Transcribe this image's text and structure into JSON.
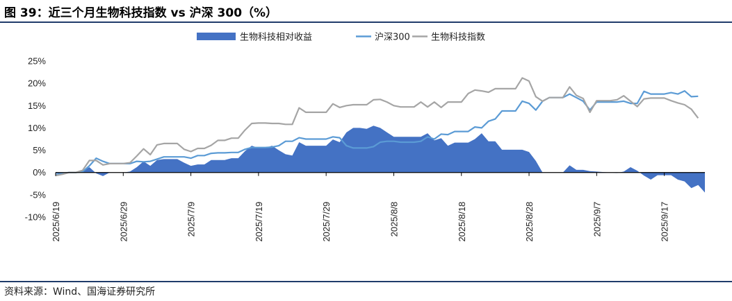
{
  "title": "图 39：近三个月生物科技指数 vs 沪深 300（%）",
  "source": "资料来源：Wind、国海证券研究所",
  "chart_data": {
    "type": "line",
    "y_tick_labels": [
      "25%",
      "20%",
      "15%",
      "10%",
      "5%",
      "0%",
      "-5%",
      "-10%"
    ],
    "ylim": [
      -10,
      25
    ],
    "y_unit": "%",
    "x_tick_labels": [
      "2025/6/19",
      "2025/6/29",
      "2025/7/9",
      "2025/7/19",
      "2025/7/29",
      "2025/8/8",
      "2025/8/18",
      "2025/8/28",
      "2025/9/7",
      "2025/9/17"
    ],
    "legend_position": "top",
    "grid": false,
    "series": [
      {
        "name": "生物科技相对收益",
        "kind": "area",
        "color": "#4472c4",
        "values": [
          -0.2,
          -0.2,
          0,
          0,
          0.3,
          1.2,
          -0.2,
          -0.8,
          0,
          0,
          0,
          0.2,
          1.2,
          2.5,
          1.5,
          2.8,
          3,
          3,
          3,
          2.2,
          1.5,
          1.8,
          1.8,
          2.8,
          2.8,
          2.8,
          3.2,
          3.2,
          4.8,
          6,
          5.5,
          5.5,
          6,
          5,
          4.1,
          3.8,
          6.8,
          6,
          6,
          6,
          6,
          7.4,
          6.8,
          9,
          10,
          10,
          9.8,
          10.5,
          10,
          9,
          8,
          8,
          8,
          8,
          8,
          8.8,
          7.2,
          7.7,
          6,
          6.7,
          6.7,
          6.7,
          7.5,
          8.8,
          7,
          7,
          5.1,
          5.1,
          5.1,
          5.1,
          4.6,
          2.6,
          0,
          0,
          0,
          0,
          1.6,
          0.6,
          0.6,
          0.3,
          0.2,
          0.1,
          0,
          -0.1,
          0.2,
          1.2,
          0.4,
          -0.7,
          -1.6,
          -0.6,
          -0.6,
          -0.6,
          -1.6,
          -2,
          -3.5,
          -2.8,
          -4.5
        ]
      },
      {
        "name": "沪深300",
        "kind": "line",
        "color": "#5b9bd5",
        "values": [
          -0.5,
          -0.2,
          0,
          0,
          0.2,
          1.5,
          3.2,
          2.5,
          2,
          2,
          2,
          2,
          2.5,
          2.4,
          2.5,
          3,
          3.5,
          3.5,
          3.5,
          3.5,
          3.2,
          3.8,
          3.8,
          4.3,
          4.4,
          4.4,
          4.5,
          4.5,
          5.2,
          5.6,
          5.6,
          5.6,
          5.7,
          6,
          7,
          7,
          7.8,
          7.5,
          7.5,
          7.5,
          7.5,
          8,
          7.8,
          6,
          5.5,
          5.5,
          5.5,
          5.8,
          6.8,
          7,
          7,
          6.8,
          6.8,
          6.8,
          7,
          8,
          7.5,
          8.6,
          8.5,
          9.2,
          9.2,
          9.2,
          10.2,
          10,
          11.5,
          12,
          13.8,
          13.8,
          13.8,
          16,
          15.5,
          14,
          16,
          16.8,
          16.8,
          16.8,
          17.6,
          16.8,
          16,
          14,
          15.8,
          15.8,
          15.8,
          15.8,
          16,
          15.5,
          15.5,
          18.2,
          17.6,
          17.6,
          17.6,
          17.9,
          17.6,
          18.3,
          17,
          17.1
        ]
      },
      {
        "name": "生物科技指数",
        "kind": "line",
        "color": "#a5a5a5",
        "values": [
          -0.7,
          -0.4,
          0,
          0,
          0.5,
          2.7,
          2.7,
          1.7,
          2,
          2,
          2,
          2.2,
          3.7,
          5.3,
          4,
          6.2,
          6.5,
          6.5,
          6.5,
          5.2,
          4.7,
          5.4,
          5.4,
          6.1,
          7.2,
          7.2,
          7.7,
          7.7,
          9.5,
          11,
          11.1,
          11.1,
          11,
          11,
          10.8,
          10.8,
          14.5,
          13.5,
          13.5,
          13.5,
          13.5,
          15.4,
          14.6,
          15,
          15.2,
          15.2,
          15.2,
          16.3,
          16.4,
          15.8,
          15,
          14.7,
          14.7,
          14.7,
          15.8,
          14.7,
          15.8,
          14.6,
          15.8,
          15.8,
          15.8,
          17.7,
          18.5,
          18.3,
          18,
          18.8,
          18.8,
          18.8,
          18.8,
          21.2,
          20.5,
          17,
          16,
          16.8,
          16.8,
          16.8,
          19.2,
          17.3,
          16.6,
          13.5,
          16.1,
          16.1,
          16.1,
          16.3,
          17.2,
          16,
          14.8,
          16.5,
          16.7,
          16.7,
          16.7,
          16.1,
          15.6,
          15.2,
          14.2,
          12.2
        ]
      }
    ]
  }
}
